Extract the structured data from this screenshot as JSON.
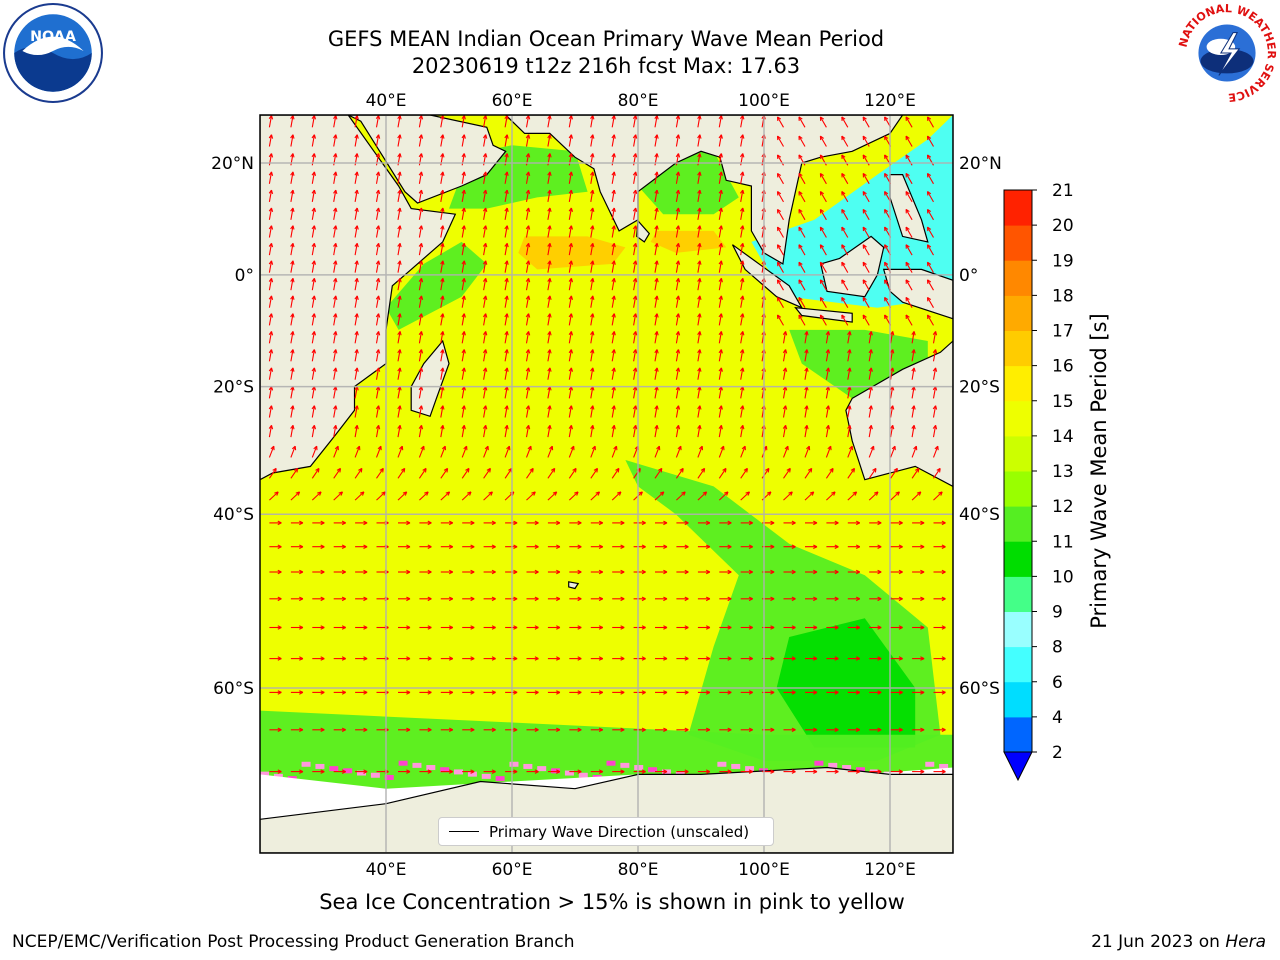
{
  "header": {
    "title_line1": "GEFS MEAN Indian Ocean Primary Wave Mean Period",
    "title_line2": "20230619 t12z 216h fcst   Max: 17.63"
  },
  "logos": {
    "left": "noaa-logo",
    "left_text": "NOAA",
    "right": "national-weather-service-logo",
    "right_text": "NATIONAL WEATHER SERVICE"
  },
  "map": {
    "lon_range": [
      20,
      130
    ],
    "lat_range": [
      -72,
      28
    ],
    "lon_ticks": [
      {
        "value": 40,
        "label": "40°E"
      },
      {
        "value": 60,
        "label": "60°E"
      },
      {
        "value": 80,
        "label": "80°E"
      },
      {
        "value": 100,
        "label": "100°E"
      },
      {
        "value": 120,
        "label": "120°E"
      }
    ],
    "lat_ticks": [
      {
        "value": 20,
        "label": "20°N"
      },
      {
        "value": 0,
        "label": "0°"
      },
      {
        "value": -20,
        "label": "20°S"
      },
      {
        "value": -40,
        "label": "40°S"
      },
      {
        "value": -60,
        "label": "60°S"
      }
    ],
    "grid": true,
    "land_color": "#eeeedd",
    "arrow_color": "#ff0000",
    "ocean_dominant_period_s": 14.5
  },
  "colorbar": {
    "label": "Primary Wave Mean Period [s]",
    "levels": [
      2,
      4,
      6,
      8,
      9,
      10,
      11,
      12,
      13,
      14,
      15,
      16,
      17,
      18,
      19,
      20,
      21
    ],
    "colors": [
      "#0066ff",
      "#00ddff",
      "#44ffff",
      "#99ffff",
      "#44ff88",
      "#00dd00",
      "#55ee22",
      "#99ff00",
      "#ccff00",
      "#eeff00",
      "#ffee00",
      "#ffcc00",
      "#ffaa00",
      "#ff8800",
      "#ff5500",
      "#ff2200"
    ],
    "extend_min_color": "#0000ff"
  },
  "legend": {
    "label": "Primary Wave Direction (unscaled)"
  },
  "notes": {
    "sea_ice": "Sea Ice Concentration > 15% is shown in pink to yellow"
  },
  "footer": {
    "left": "NCEP/EMC/Verification Post Processing Product Generation Branch",
    "date": "21 Jun 2023 on",
    "machine": "Hera"
  }
}
